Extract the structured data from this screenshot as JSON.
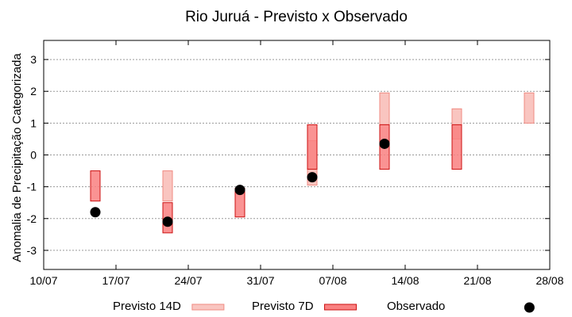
{
  "chart_data": {
    "type": "range-bar",
    "title": "Rio Juruá - Previsto x Observado",
    "xlabel": "",
    "ylabel": "Anomalia de Precipitação Categorizada",
    "xlim": [
      "10/07",
      "28/08"
    ],
    "ylim": [
      -3.6,
      3.6
    ],
    "x_ticks": [
      "10/07",
      "17/07",
      "24/07",
      "31/07",
      "07/08",
      "14/08",
      "21/08",
      "28/08"
    ],
    "y_ticks": [
      3,
      2,
      1,
      0,
      -1,
      -2,
      -3
    ],
    "grid": true,
    "legend": "bottom",
    "series": [
      {
        "name": "Previsto 14D",
        "color": "#f9c5c0",
        "edge": "#f08a82",
        "points": [
          {
            "x": "22/07",
            "low": -1.45,
            "high": -0.5
          },
          {
            "x": "05/08",
            "low": -0.95,
            "high": 0.45
          },
          {
            "x": "12/08",
            "low": 0.95,
            "high": 1.95
          },
          {
            "x": "19/08",
            "low": 0.5,
            "high": 1.45
          },
          {
            "x": "26/08",
            "low": 1.0,
            "high": 1.95
          }
        ]
      },
      {
        "name": "Previsto 7D",
        "color": "#f98080",
        "edge": "#cc1111",
        "points": [
          {
            "x": "15/07",
            "low": -1.45,
            "high": -0.5
          },
          {
            "x": "22/07",
            "low": -2.45,
            "high": -1.5
          },
          {
            "x": "29/07",
            "low": -1.95,
            "high": -1.05
          },
          {
            "x": "05/08",
            "low": -0.45,
            "high": 0.95
          },
          {
            "x": "12/08",
            "low": -0.45,
            "high": 0.95
          },
          {
            "x": "19/08",
            "low": -0.45,
            "high": 0.95
          }
        ]
      },
      {
        "name": "Observado",
        "color": "#000000",
        "points": [
          {
            "x": "15/07",
            "y": -1.8
          },
          {
            "x": "22/07",
            "y": -2.1
          },
          {
            "x": "29/07",
            "y": -1.1
          },
          {
            "x": "05/08",
            "y": -0.7
          },
          {
            "x": "12/08",
            "y": 0.35
          }
        ]
      }
    ]
  }
}
